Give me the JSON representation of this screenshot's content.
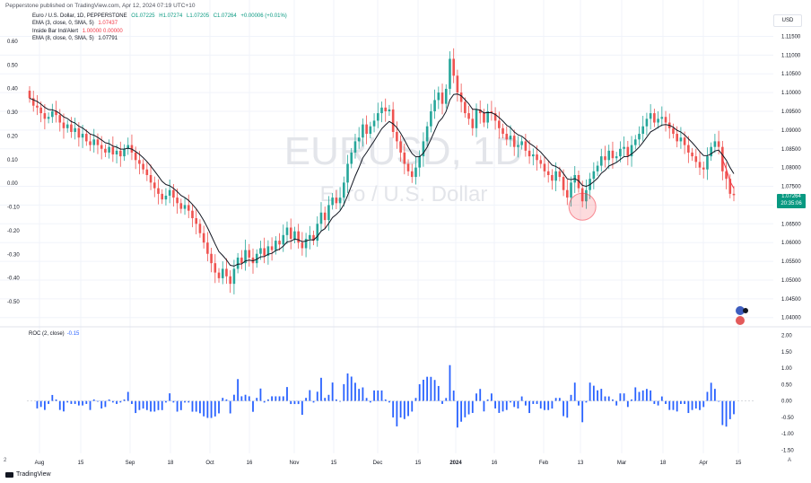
{
  "header": {
    "published_line": "Pepperstone published on TradingView.com, Apr 12, 2024 07:19 UTC+10"
  },
  "legend": {
    "symbol": "Euro / U.S. Dollar, 1D, PEPPERSTONE",
    "open": "O1.07225",
    "high": "H1.07274",
    "low": "L1.07205",
    "close": "C1.07264",
    "change": "+0.00006 (+0.01%)",
    "ema3": "EMA (3, close, 0, SMA, 5)",
    "ema3_value": "1.07437",
    "inside_bar": "Inside Bar Ind/Alert",
    "inside_bar_values": "1.00000  0.00000",
    "ema8": "EMA (8, close, 0, SMA, 5)",
    "ema8_value": "1.07791"
  },
  "watermark": {
    "ticker": "EURUSD, 1D",
    "name": "Euro / U.S. Dollar"
  },
  "currency_label": "USD",
  "price_tag": {
    "value": "1.07264",
    "countdown": "20:35:06"
  },
  "roc_legend": {
    "label": "ROC (2, close)",
    "value": "-0.15"
  },
  "footer": {
    "logo_text": "TradingView",
    "left_badge": "2",
    "right_badge": "A"
  },
  "colors": {
    "up": "#26a69a",
    "down": "#ef5350",
    "ema8": "#131722",
    "ema3": "#f23645",
    "roc": "#2962ff",
    "highlight": "#f23645"
  },
  "chart_data": [
    {
      "type": "candlestick",
      "title": "Euro / U.S. Dollar, 1D, PEPPERSTONE",
      "price_axis_ticks": [
        "1.11500",
        "1.11000",
        "1.10500",
        "1.10000",
        "1.09500",
        "1.09000",
        "1.08500",
        "1.08000",
        "1.07500",
        "1.07000",
        "1.06500",
        "1.06000",
        "1.05500",
        "1.05000",
        "1.04500",
        "1.04000"
      ],
      "left_axis_ticks": [
        "0.60",
        "0.50",
        "0.40",
        "0.30",
        "0.20",
        "0.10",
        "0.00",
        "-0.10",
        "-0.20",
        "-0.30",
        "-0.40",
        "-0.50"
      ],
      "x_ticks": [
        "Aug",
        "15",
        "Sep",
        "18",
        "Oct",
        "16",
        "Nov",
        "15",
        "Dec",
        "15",
        "2024",
        "16",
        "Feb",
        "13",
        "Mar",
        "18",
        "Apr",
        "15"
      ],
      "ylim": [
        1.0385,
        1.1175
      ],
      "close_series": [
        1.0985,
        1.0965,
        1.096,
        1.0945,
        1.093,
        1.0935,
        1.095,
        1.094,
        1.092,
        1.0905,
        1.0915,
        1.0895,
        1.0905,
        1.088,
        1.089,
        1.087,
        1.086,
        1.0875,
        1.086,
        1.085,
        1.084,
        1.0855,
        1.0835,
        1.0845,
        1.083,
        1.085,
        1.086,
        1.084,
        1.082,
        1.081,
        1.0795,
        1.078,
        1.076,
        1.0745,
        1.073,
        1.0715,
        1.0725,
        1.074,
        1.072,
        1.0705,
        1.069,
        1.07,
        1.0685,
        1.0665,
        1.065,
        1.0625,
        1.06,
        1.057,
        1.0545,
        1.052,
        1.0505,
        1.053,
        1.051,
        1.049,
        1.053,
        1.056,
        1.0545,
        1.058,
        1.056,
        1.0545,
        1.057,
        1.0585,
        1.0565,
        1.059,
        1.058,
        1.0605,
        1.0595,
        1.062,
        1.064,
        1.061,
        1.063,
        1.06,
        1.0585,
        1.061,
        1.062,
        1.0605,
        1.065,
        1.068,
        1.066,
        1.07,
        1.072,
        1.0705,
        1.072,
        1.076,
        1.081,
        1.084,
        1.087,
        1.088,
        1.0915,
        1.089,
        1.091,
        1.0925,
        1.0945,
        1.096,
        1.095,
        1.0955,
        1.0895,
        1.087,
        1.084,
        1.081,
        1.079,
        1.0775,
        1.08,
        1.083,
        1.087,
        1.091,
        1.095,
        1.098,
        1.1,
        1.097,
        1.101,
        1.109,
        1.1045,
        1.1,
        1.0975,
        1.0945,
        1.093,
        1.0905,
        1.0955,
        1.0945,
        1.092,
        1.095,
        1.0945,
        1.0925,
        1.0905,
        1.089,
        1.0875,
        1.0885,
        1.0855,
        1.086,
        1.087,
        1.0845,
        1.083,
        1.0835,
        1.082,
        1.081,
        1.079,
        1.078,
        1.0765,
        1.079,
        1.0775,
        1.074,
        1.072,
        1.076,
        1.078,
        1.0745,
        1.071,
        1.074,
        1.077,
        1.079,
        1.0805,
        1.083,
        1.082,
        1.0845,
        1.0825,
        1.083,
        1.085,
        1.0855,
        1.083,
        1.086,
        1.0875,
        1.089,
        1.091,
        1.093,
        1.0945,
        1.092,
        1.093,
        1.0935,
        1.092,
        1.0905,
        1.089,
        1.087,
        1.088,
        1.086,
        1.084,
        1.083,
        1.0815,
        1.08,
        1.0795,
        1.083,
        1.0855,
        1.087,
        1.0855,
        1.079,
        1.077,
        1.073,
        1.07264
      ],
      "ema_lines": [
        {
          "name": "EMA (8, close, 0, SMA, 5)"
        },
        {
          "name": "EMA (3, close, 0, SMA, 5)"
        }
      ],
      "annotation": "highlight circle at February low"
    },
    {
      "type": "bar",
      "title": "ROC (2, close)",
      "y_ticks": [
        "2.00",
        "1.50",
        "1.00",
        "0.50",
        "0.00",
        "-0.50",
        "-1.00",
        "-1.50"
      ],
      "ylim": [
        -1.6,
        2.1
      ],
      "last_value": -0.15
    }
  ]
}
